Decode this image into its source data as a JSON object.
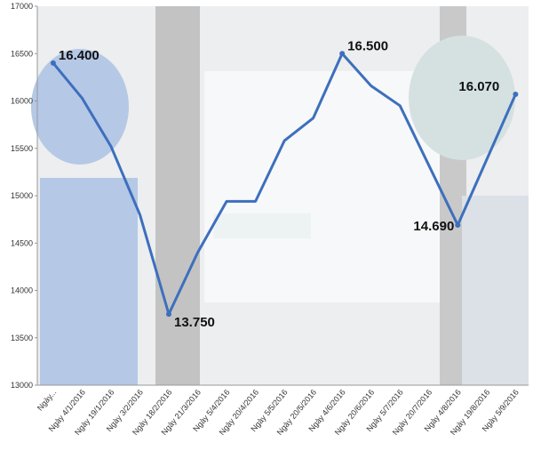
{
  "chart_data": {
    "type": "line",
    "categories": [
      "Ngày...",
      "Ngày 4/1/2016",
      "Ngày 19/1/2016",
      "Ngày 3/2/2016",
      "Ngày 18/2/2016",
      "Ngày 21/3/2016",
      "Ngày 5/4/2016",
      "Ngày 20/4/2016",
      "Ngày 5/5/2016",
      "Ngày 20/5/2016",
      "Ngày 4/6/2016",
      "Ngày 20/6/2016",
      "Ngày 5/7/2016",
      "Ngày 20/7/2016",
      "Ngày 4/8/2016",
      "Ngày 19/8/2016",
      "Ngày 5/9/2016"
    ],
    "values": [
      16400,
      16030,
      15520,
      14800,
      13750,
      14400,
      14940,
      14940,
      15580,
      15820,
      16500,
      16160,
      15950,
      15320,
      14690,
      15380,
      16070
    ],
    "value_labels": [
      "16.400",
      null,
      null,
      null,
      "13.750",
      null,
      null,
      null,
      null,
      null,
      "16.500",
      null,
      null,
      null,
      "14.690",
      null,
      "16.070"
    ],
    "color": "#3d6fbd",
    "ylim": [
      13000,
      17000
    ],
    "yticks": [
      13000,
      13500,
      14000,
      14500,
      15000,
      15500,
      16000,
      16500,
      17000
    ]
  }
}
